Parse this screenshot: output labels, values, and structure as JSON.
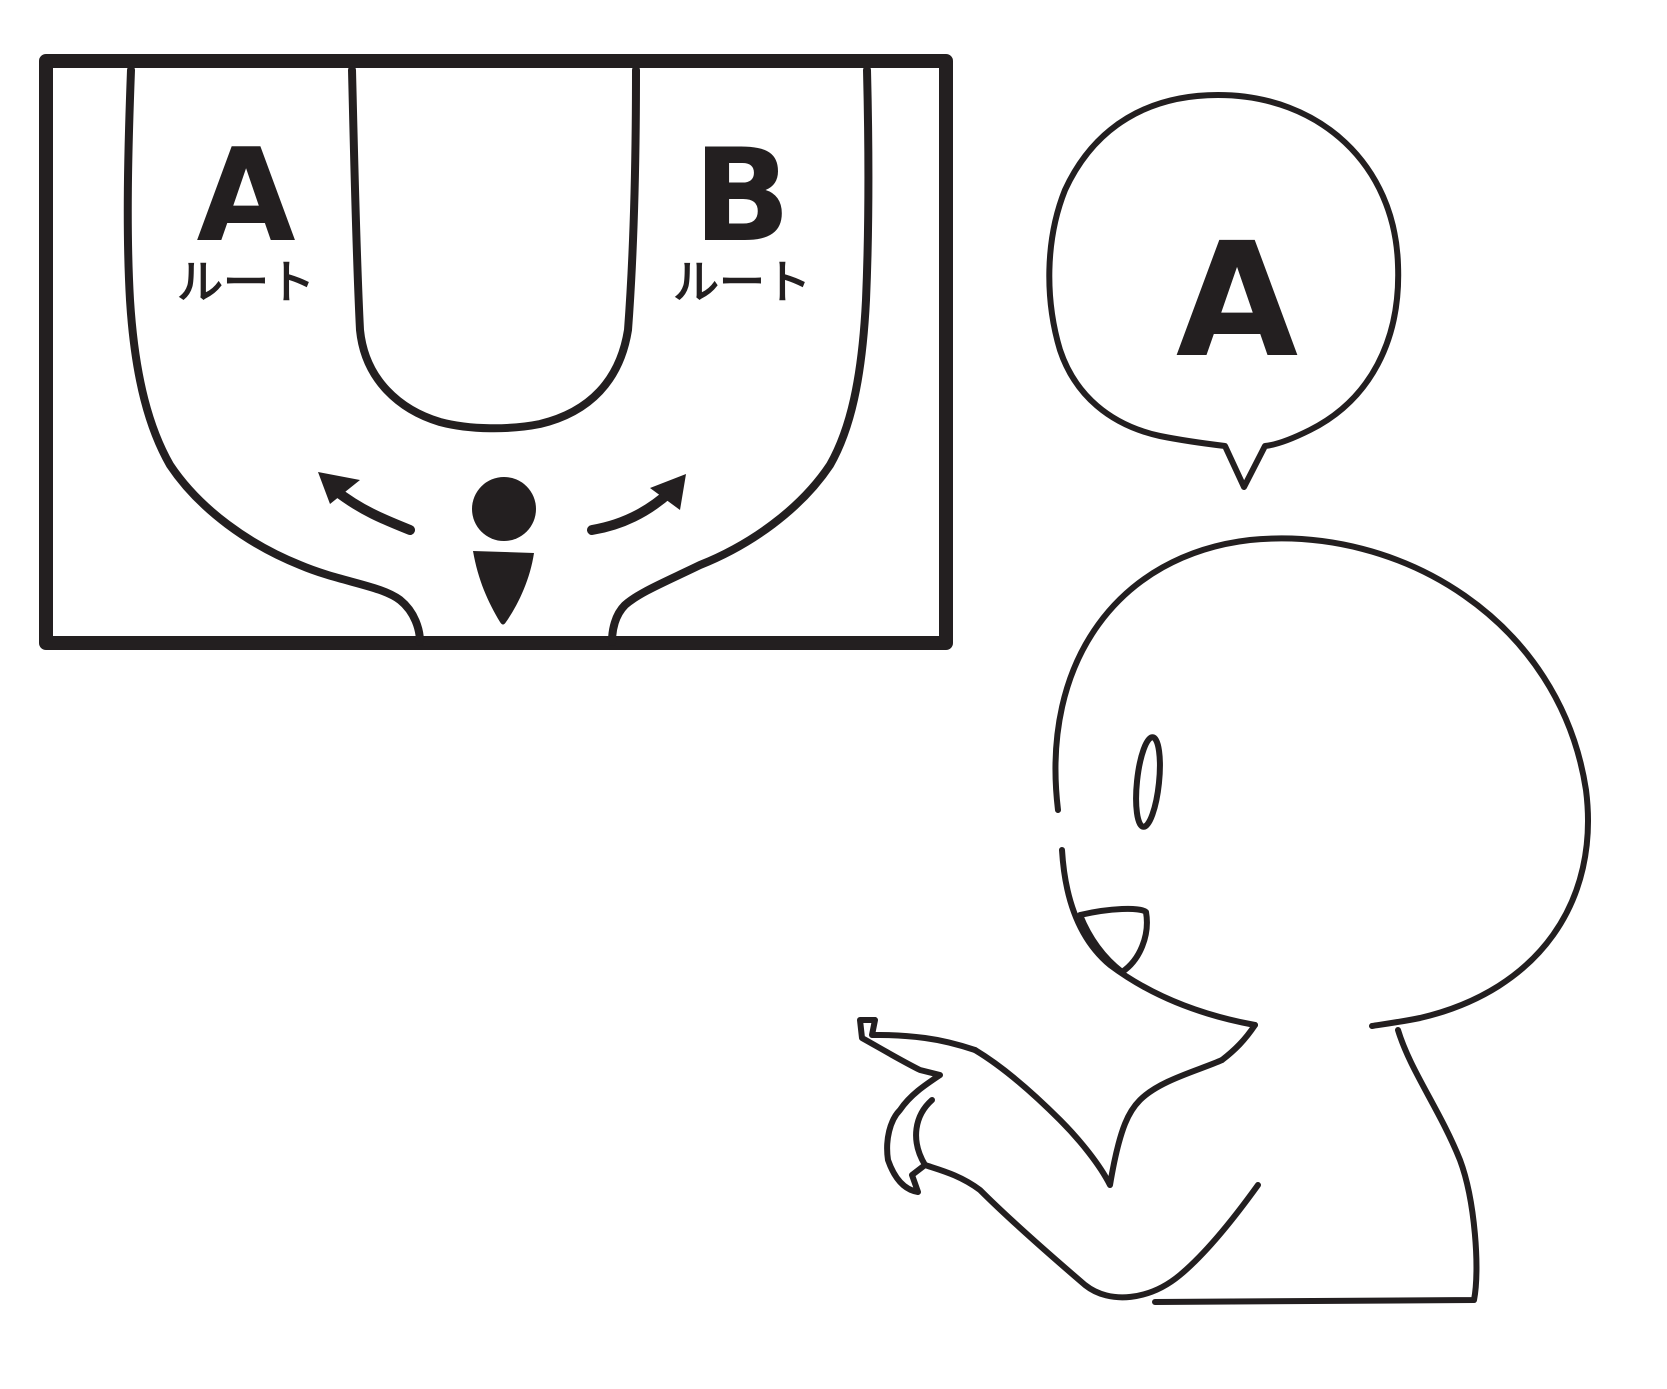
{
  "screen": {
    "route_a": {
      "letter": "A",
      "label": "ルート"
    },
    "route_b": {
      "letter": "B",
      "label": "ルート"
    }
  },
  "speech_bubble": {
    "text": "A"
  },
  "colors": {
    "ink": "#231f20",
    "background": "#ffffff"
  }
}
